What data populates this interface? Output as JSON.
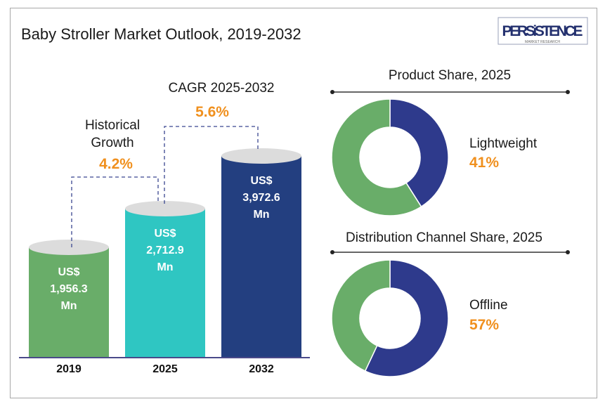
{
  "title": "Baby Stroller Market Outlook, 2019-2032",
  "logo": {
    "name": "PERSiSTENCE",
    "tagline": "MARKET RESEARCH"
  },
  "colors": {
    "green": "#69ad69",
    "teal": "#2fc6c2",
    "navy": "#233f80",
    "donut_blue": "#2e3a8c",
    "orange": "#f0901e"
  },
  "chart_data": [
    {
      "type": "bar",
      "categories": [
        "2019",
        "2025",
        "2032"
      ],
      "values": [
        1956.3,
        2712.9,
        3972.6
      ],
      "labels": [
        [
          "US$",
          "1,956.3",
          "Mn"
        ],
        [
          "US$",
          "2,712.9",
          "Mn"
        ],
        [
          "US$",
          "3,972.6",
          "Mn"
        ]
      ],
      "annotations": [
        {
          "label": [
            "Historical",
            "Growth"
          ],
          "value": "4.2%"
        },
        {
          "label": [
            "CAGR 2025-2032"
          ],
          "value": "5.6%"
        }
      ]
    },
    {
      "type": "pie",
      "title": "Product Share, 2025",
      "highlight": {
        "label": "Lightweight",
        "value": "41%"
      },
      "values": [
        41,
        59
      ]
    },
    {
      "type": "pie",
      "title": "Distribution Channel Share, 2025",
      "highlight": {
        "label": "Offline",
        "value": "57%"
      },
      "values": [
        57,
        43
      ]
    }
  ]
}
